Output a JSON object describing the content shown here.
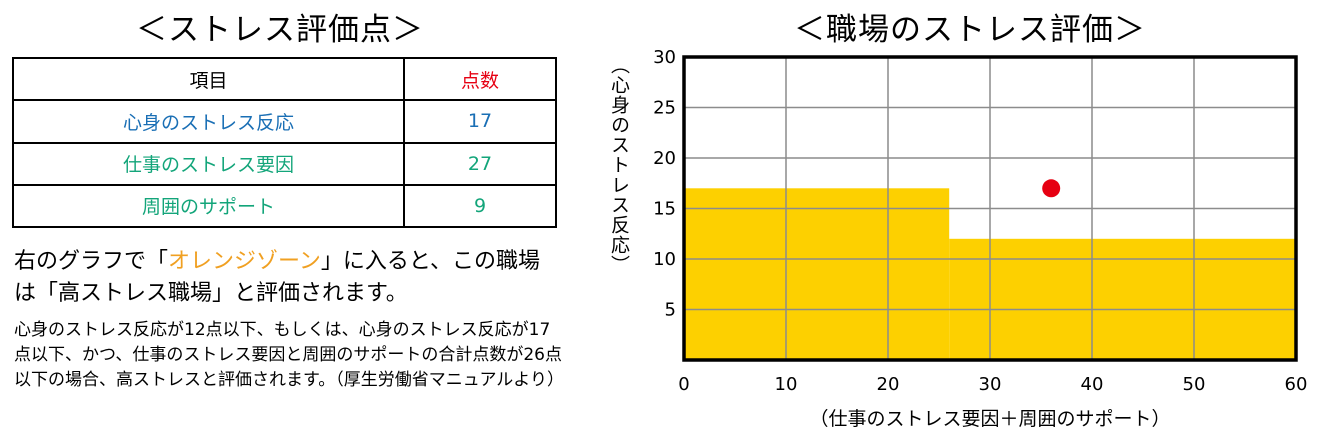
{
  "left_title": "＜ストレス評価点＞",
  "table": {
    "header_item": "項目",
    "header_score": "点数",
    "rows": [
      {
        "label": "心身のストレス反応",
        "score": "17"
      },
      {
        "label": "仕事のストレス要因",
        "score": "27"
      },
      {
        "label": "周囲のサポート",
        "score": "9"
      }
    ]
  },
  "description": {
    "line_prefix": "右のグラフで「",
    "orange_zone": "オレンジゾーン",
    "line_suffix": "」に入ると、この職場は「高ストレス職場」と評価されます。",
    "note": "心身のストレス反応が12点以下、もしくは、心身のストレス反応が17点以下、かつ、仕事のストレス要因と周囲のサポートの合計点数が26点以下の場合、高ストレスと評価されます。（厚生労働省マニュアルより）"
  },
  "colors": {
    "zone": "#fdd000",
    "point": "#e60012",
    "score_header": "#e60012",
    "blue_row": "#1a6fb5",
    "green_row": "#13a57a",
    "orange_text": "#f0a022",
    "grid": "#8c8c8c"
  },
  "chart_data": {
    "type": "scatter",
    "title": "＜職場のストレス評価＞",
    "xlabel": "（仕事のストレス要因＋周囲のサポート）",
    "ylabel": "（心身のストレス反応）",
    "xlim": [
      0,
      60
    ],
    "ylim": [
      0,
      30
    ],
    "x_ticks": [
      0,
      10,
      20,
      30,
      40,
      50,
      60
    ],
    "y_ticks": [
      5,
      10,
      15,
      20,
      25,
      30
    ],
    "grid": true,
    "zone": [
      {
        "x_from": 0,
        "x_to": 26,
        "y_to": 17
      },
      {
        "x_from": 26,
        "x_to": 60,
        "y_to": 12
      }
    ],
    "points": [
      {
        "x": 36,
        "y": 17
      }
    ]
  }
}
